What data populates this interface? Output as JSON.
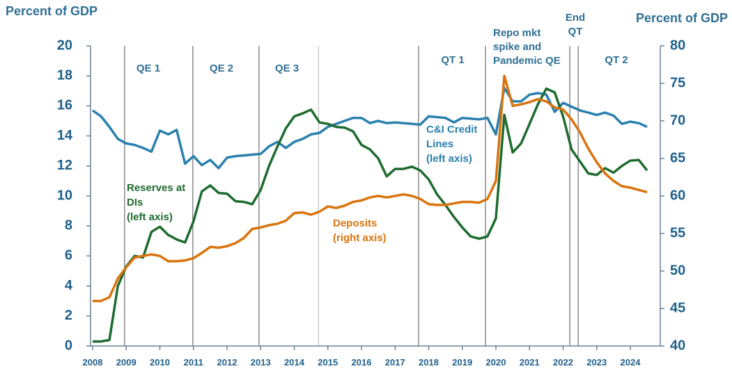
{
  "chart_data": {
    "type": "line",
    "ylabel": "Percent of GDP",
    "y2label": "Percent of GDP",
    "xlim": [
      2008,
      2024.9
    ],
    "xticks": [
      2008,
      2009,
      2010,
      2011,
      2012,
      2013,
      2014,
      2015,
      2016,
      2017,
      2018,
      2019,
      2020,
      2021,
      2022,
      2023,
      2024
    ],
    "ylim": [
      0,
      20
    ],
    "yticks": [
      0,
      2,
      4,
      6,
      8,
      10,
      12,
      14,
      16,
      18,
      20
    ],
    "y2lim": [
      40,
      80
    ],
    "y2ticks": [
      40,
      45,
      50,
      55,
      60,
      65,
      70,
      75,
      80
    ],
    "period_lines": [
      2008.95,
      2010.98,
      2012.95,
      2014.72,
      2017.7,
      2019.69,
      2022.2,
      2022.45
    ],
    "period_labels": [
      [
        "QE 1"
      ],
      [
        "QE 2"
      ],
      [
        "QE 3"
      ],
      [
        "QT 1"
      ],
      [
        "Repo mkt",
        "spike and",
        "Pandemic QE"
      ],
      [
        "End",
        "QT"
      ],
      [
        "QT 2"
      ]
    ],
    "series_labels": [
      [
        "C&I Credit",
        "Lines",
        "(left axis)"
      ],
      [
        "Reserves at",
        "DIs",
        "(left axis)"
      ],
      [
        "Deposits",
        "(right axis)"
      ]
    ],
    "x": [
      2008,
      2008.25,
      2008.5,
      2008.75,
      2009,
      2009.25,
      2009.5,
      2009.75,
      2010,
      2010.25,
      2010.5,
      2010.75,
      2011,
      2011.25,
      2011.5,
      2011.75,
      2012,
      2012.25,
      2012.5,
      2012.75,
      2013,
      2013.25,
      2013.5,
      2013.75,
      2014,
      2014.25,
      2014.5,
      2014.75,
      2015,
      2015.25,
      2015.5,
      2015.75,
      2016,
      2016.25,
      2016.5,
      2016.75,
      2017,
      2017.25,
      2017.5,
      2017.75,
      2018,
      2018.25,
      2018.5,
      2018.75,
      2019,
      2019.25,
      2019.5,
      2019.75,
      2020,
      2020.25,
      2020.5,
      2020.75,
      2021,
      2021.25,
      2021.5,
      2021.75,
      2022,
      2022.25,
      2022.5,
      2022.75,
      2023,
      2023.25,
      2023.5,
      2023.75,
      2024,
      2024.25,
      2024.5
    ],
    "series": [
      {
        "name": "C&I Credit Lines",
        "color": "#2a80ad",
        "axis": "y",
        "values": [
          15.7,
          15.3,
          14.6,
          13.8,
          13.5,
          13.4,
          13.2,
          12.95,
          14.35,
          14.1,
          14.4,
          12.15,
          12.65,
          12.05,
          12.4,
          11.85,
          12.55,
          12.65,
          12.7,
          12.75,
          12.8,
          13.3,
          13.6,
          13.2,
          13.6,
          13.8,
          14.1,
          14.2,
          14.6,
          14.8,
          15.0,
          15.2,
          15.2,
          14.85,
          15.0,
          14.85,
          14.9,
          14.85,
          14.8,
          14.75,
          15.3,
          15.25,
          15.2,
          14.9,
          15.2,
          15.15,
          15.1,
          15.2,
          14.1,
          17.2,
          16.3,
          16.3,
          16.75,
          16.85,
          16.75,
          15.6,
          16.2,
          15.95,
          15.7,
          15.55,
          15.4,
          15.55,
          15.35,
          14.8,
          14.95,
          14.85,
          14.6
        ]
      },
      {
        "name": "Reserves at DIs",
        "color": "#1e6b2e",
        "axis": "y",
        "values": [
          0.3,
          0.3,
          0.4,
          4.0,
          5.3,
          6.0,
          5.9,
          7.6,
          7.95,
          7.4,
          7.1,
          6.9,
          8.3,
          10.3,
          10.7,
          10.2,
          10.15,
          9.65,
          9.6,
          9.45,
          10.4,
          12.0,
          13.3,
          14.5,
          15.3,
          15.5,
          15.75,
          14.9,
          14.8,
          14.6,
          14.55,
          14.3,
          13.4,
          13.1,
          12.5,
          11.3,
          11.8,
          11.8,
          11.95,
          11.7,
          11.1,
          10.1,
          9.4,
          8.6,
          7.9,
          7.3,
          7.15,
          7.3,
          8.5,
          15.4,
          12.9,
          13.5,
          14.8,
          16.1,
          17.15,
          16.9,
          15.3,
          13.1,
          12.3,
          11.5,
          11.4,
          11.85,
          11.55,
          12.0,
          12.35,
          12.4,
          11.7
        ]
      },
      {
        "name": "Deposits",
        "color": "#d9730d",
        "axis": "y2",
        "values": [
          46.0,
          46.0,
          46.5,
          49.0,
          50.5,
          51.8,
          52.0,
          52.2,
          52.0,
          51.3,
          51.3,
          51.4,
          51.7,
          52.4,
          53.2,
          53.1,
          53.3,
          53.7,
          54.4,
          55.6,
          55.8,
          56.1,
          56.3,
          56.7,
          57.7,
          57.8,
          57.5,
          57.9,
          58.6,
          58.4,
          58.7,
          59.2,
          59.4,
          59.8,
          60.0,
          59.8,
          60.0,
          60.2,
          60.0,
          59.6,
          58.9,
          58.8,
          58.8,
          59.0,
          59.2,
          59.2,
          59.1,
          59.6,
          62.0,
          76.0,
          72.0,
          72.2,
          72.5,
          72.9,
          72.6,
          71.8,
          71.5,
          70.2,
          68.5,
          66.3,
          64.5,
          63.0,
          62.0,
          61.3,
          61.1,
          60.8,
          60.5
        ]
      }
    ]
  }
}
